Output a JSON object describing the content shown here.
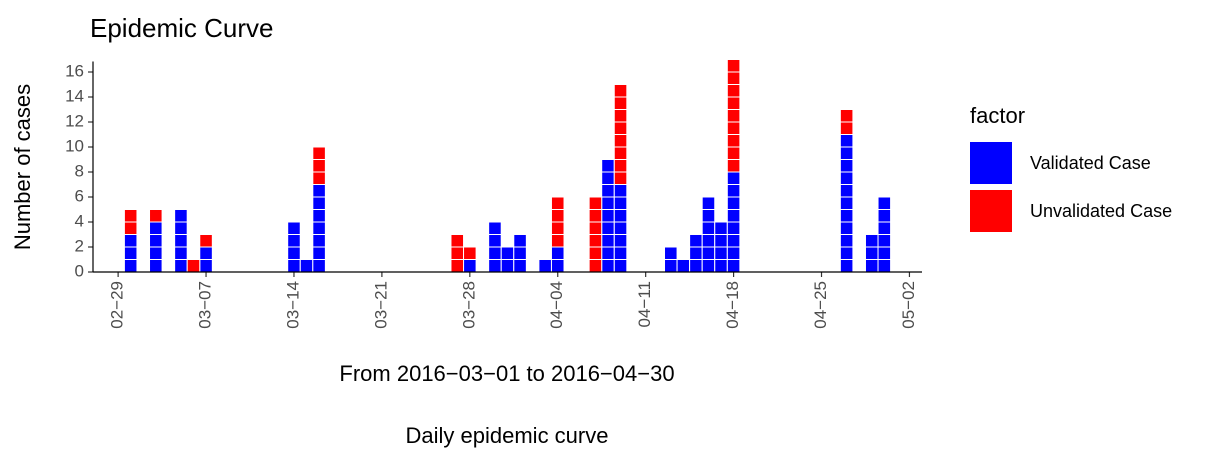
{
  "chart_data": {
    "type": "bar",
    "stacked": true,
    "title": "Epidemic Curve",
    "y_label": "Number of cases",
    "x_label": "From 2016−03−01 to 2016−04−30",
    "caption": "Daily epidemic curve",
    "legend_title": "factor",
    "x": [
      "03−01",
      "03−03",
      "03−05",
      "03−06",
      "03−07",
      "03−14",
      "03−15",
      "03−16",
      "03−27",
      "03−28",
      "03−30",
      "03−31",
      "04−01",
      "04−03",
      "04−04",
      "04−07",
      "04−08",
      "04−09",
      "04−13",
      "04−14",
      "04−15",
      "04−16",
      "04−17",
      "04−18",
      "04−27",
      "04−29",
      "04−30"
    ],
    "series": [
      {
        "name": "Validated Case",
        "color": "#0000ff",
        "values": [
          3,
          4,
          5,
          0,
          2,
          4,
          1,
          7,
          0,
          1,
          4,
          2,
          3,
          1,
          2,
          0,
          9,
          7,
          2,
          1,
          3,
          6,
          4,
          8,
          11,
          3,
          6
        ]
      },
      {
        "name": "Unvalidated Case",
        "color": "#ff0000",
        "values": [
          2,
          1,
          0,
          1,
          1,
          0,
          0,
          3,
          3,
          1,
          0,
          0,
          0,
          0,
          4,
          6,
          0,
          8,
          0,
          0,
          0,
          0,
          0,
          9,
          2,
          0,
          0
        ]
      }
    ],
    "xlim": [
      "02−27",
      "05−03"
    ],
    "xticks": [
      "02−29",
      "03−07",
      "03−14",
      "03−21",
      "03−28",
      "04−04",
      "04−11",
      "04−18",
      "04−25",
      "05−02"
    ],
    "ylim": [
      0,
      17
    ],
    "yticks": [
      0,
      2,
      4,
      6,
      8,
      10,
      12,
      14,
      16
    ]
  }
}
